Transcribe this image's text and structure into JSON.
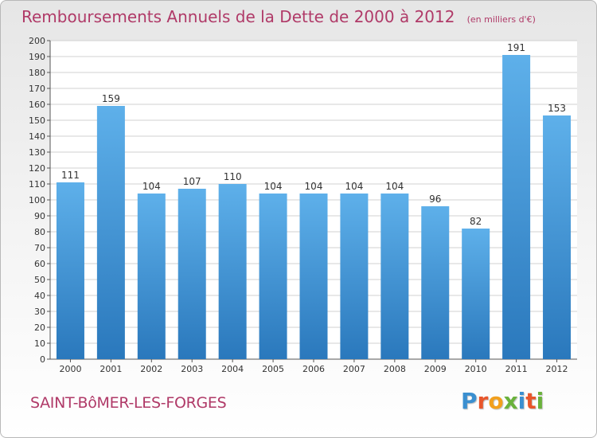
{
  "header": {
    "title": "Remboursements Annuels de la Dette de 2000 à 2012",
    "unit_note": "(en milliers d'€)"
  },
  "footer": {
    "commune": "SAINT-BôMER-LES-FORGES",
    "brand": "Proxiti",
    "brand_letters": [
      {
        "ch": "P",
        "color": "#3a8fd0"
      },
      {
        "ch": "r",
        "color": "#e8562b"
      },
      {
        "ch": "o",
        "color": "#f2a01d"
      },
      {
        "ch": "x",
        "color": "#6ab23c"
      },
      {
        "ch": "i",
        "color": "#3a8fd0"
      },
      {
        "ch": "t",
        "color": "#e8562b"
      },
      {
        "ch": "i",
        "color": "#6ab23c"
      }
    ]
  },
  "colors": {
    "bar_top": "#5eb0ea",
    "bar_bottom": "#2a78bc",
    "title": "#b03a68",
    "grid": "#d0d0d0"
  },
  "chart_data": {
    "type": "bar",
    "title": "Remboursements Annuels de la Dette de 2000 à 2012",
    "xlabel": "",
    "ylabel": "",
    "ylim": [
      0,
      200
    ],
    "ytick_step": 10,
    "grid": true,
    "categories": [
      "2000",
      "2001",
      "2002",
      "2003",
      "2004",
      "2005",
      "2006",
      "2007",
      "2008",
      "2009",
      "2010",
      "2011",
      "2012"
    ],
    "values": [
      111,
      159,
      104,
      107,
      110,
      104,
      104,
      104,
      104,
      96,
      82,
      191,
      153
    ]
  }
}
